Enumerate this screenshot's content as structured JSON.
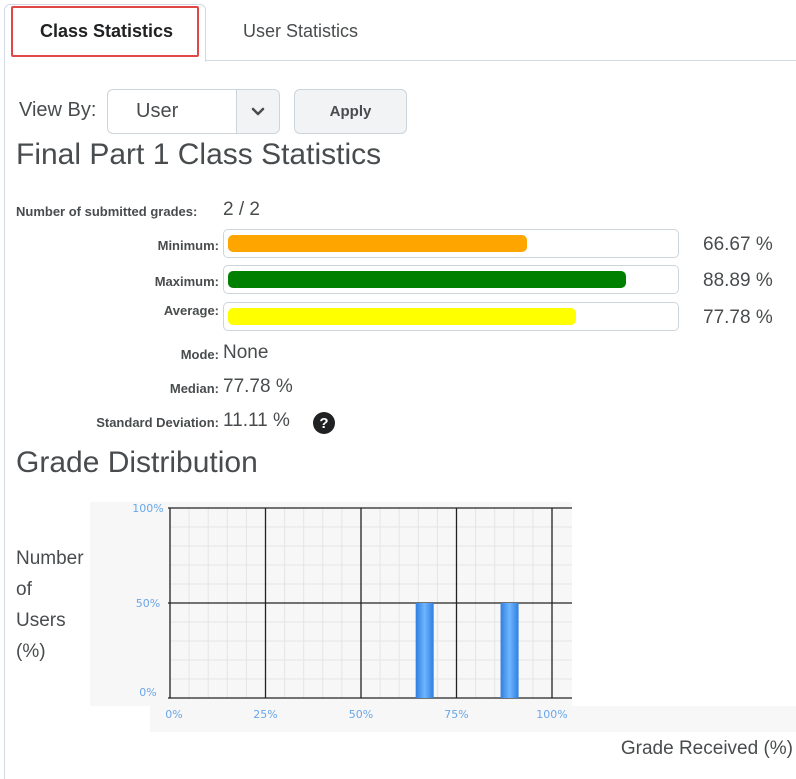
{
  "tabs": [
    {
      "label": "Class Statistics",
      "active": true
    },
    {
      "label": "User Statistics",
      "active": false
    }
  ],
  "view_by": {
    "label": "View By:",
    "selected": "User",
    "apply_label": "Apply"
  },
  "page_title": "Final Part 1 Class Statistics",
  "stats": {
    "submitted_label": "Number of submitted grades:",
    "submitted_value": "2 / 2",
    "minimum": {
      "label": "Minimum:",
      "value": "66.67 %",
      "fraction": 0.6667,
      "color": "#ffa500"
    },
    "maximum": {
      "label": "Maximum:",
      "value": "88.89 %",
      "fraction": 0.8889,
      "color": "#008000"
    },
    "average": {
      "label": "Average:",
      "value": "77.78 %",
      "fraction": 0.7778,
      "color": "#ffff00"
    },
    "mode_label": "Mode:",
    "mode_value": "None",
    "median_label": "Median:",
    "median_value": "77.78 %",
    "stddev_label": "Standard Deviation:",
    "stddev_value": "11.11 %",
    "help_icon": "question-circle-icon"
  },
  "distribution": {
    "title": "Grade Distribution",
    "ylabel_lines": [
      "Number",
      "of",
      "Users",
      "(%)"
    ],
    "xlabel": "Grade Received (%)"
  },
  "chart_data": {
    "type": "bar",
    "x_ticks": [
      "0%",
      "25%",
      "50%",
      "75%",
      "100%"
    ],
    "y_ticks": [
      "0%",
      "50%",
      "100%"
    ],
    "xlim": [
      0,
      100
    ],
    "ylim": [
      0,
      100
    ],
    "bars": [
      {
        "x": 66.67,
        "value": 50
      },
      {
        "x": 88.89,
        "value": 50
      }
    ],
    "bar_color": "#3c8ee8",
    "xlabel": "Grade Received (%)",
    "ylabel": "Number of Users (%)",
    "grid": true
  }
}
